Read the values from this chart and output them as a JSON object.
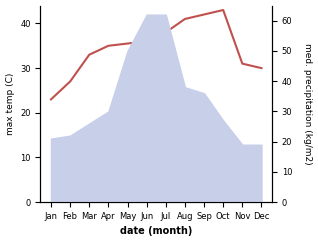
{
  "months": [
    "Jan",
    "Feb",
    "Mar",
    "Apr",
    "May",
    "Jun",
    "Jul",
    "Aug",
    "Sep",
    "Oct",
    "Nov",
    "Dec"
  ],
  "temperature": [
    23,
    27,
    33,
    35,
    35.5,
    36,
    38,
    41,
    42,
    43,
    31,
    30
  ],
  "precipitation": [
    21,
    22,
    26,
    30,
    50,
    62,
    62,
    38,
    36,
    27,
    19,
    19
  ],
  "temp_color": "#c0504d",
  "precip_fill_color": "#c8cfe8",
  "left_ylabel": "max temp (C)",
  "right_ylabel": "med. precipitation (kg/m2)",
  "xlabel": "date (month)",
  "left_ylim": [
    0,
    44
  ],
  "right_ylim": [
    0,
    65
  ],
  "left_yticks": [
    0,
    10,
    20,
    30,
    40
  ],
  "right_yticks": [
    0,
    10,
    20,
    30,
    40,
    50,
    60
  ],
  "bg_color": "#ffffff"
}
